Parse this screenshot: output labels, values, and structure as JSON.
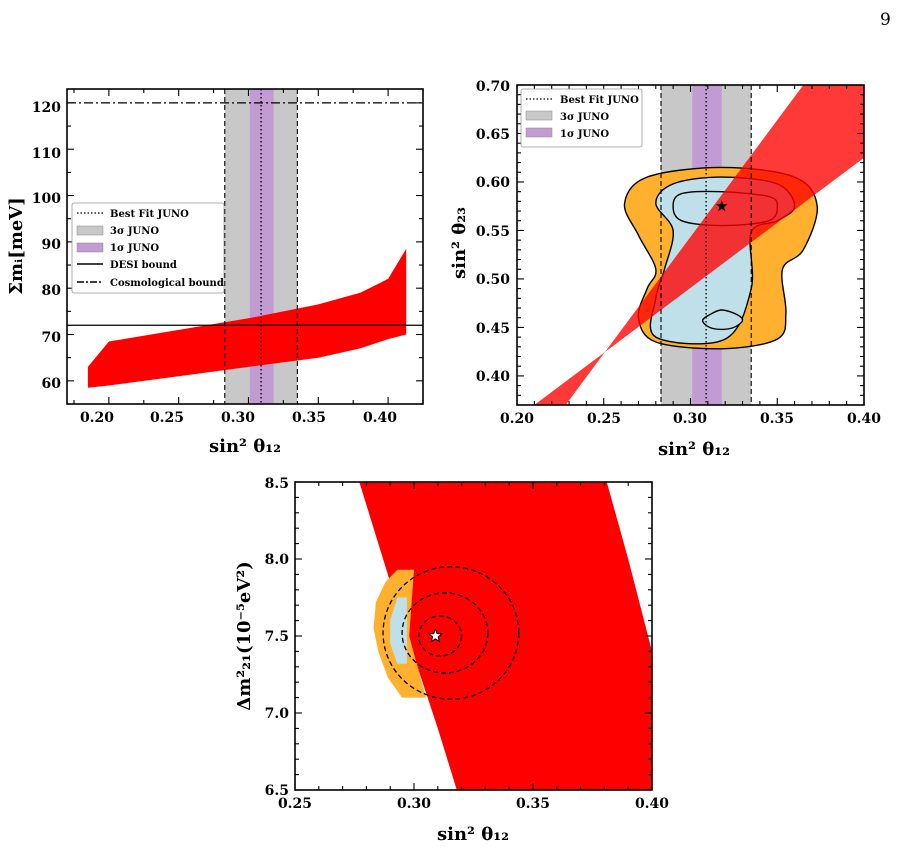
{
  "page": {
    "number": "9"
  },
  "colors": {
    "allowed_region": "#ff0000",
    "sigma3_band": "#c8c8c8",
    "sigma1_band": "#c39bd3",
    "contour_outer_fill": "#ffb02e",
    "contour_inner_fill": "#bfe0e8",
    "line": "#000000"
  },
  "chart_data": [
    {
      "type": "scatter",
      "xlabel": "sin² θ₁₂",
      "ylabel": "Σmᵢ[meV]",
      "xlim": [
        0.17,
        0.425
      ],
      "ylim": [
        55,
        123
      ],
      "xticks": [
        "0.20",
        "0.25",
        "0.30",
        "0.35",
        "0.40"
      ],
      "yticks": [
        "60",
        "70",
        "80",
        "90",
        "100",
        "110",
        "120"
      ],
      "legend_position": "center-left",
      "legend": [
        "Best Fit JUNO",
        "3σ JUNO",
        "1σ JUNO",
        "DESI bound",
        "Cosmological bound"
      ],
      "bands": {
        "sigma3": [
          0.283,
          0.335
        ],
        "sigma1": [
          0.301,
          0.318
        ],
        "best_fit": 0.309
      },
      "hlines": {
        "desi": 72,
        "cosmological": 120
      },
      "region": {
        "x": [
          0.185,
          0.2,
          0.25,
          0.3,
          0.35,
          0.38,
          0.4,
          0.413
        ],
        "lower": [
          58.5,
          59,
          61,
          63,
          65,
          67,
          69,
          70
        ],
        "upper": [
          63,
          68.5,
          71,
          73.5,
          76.5,
          79,
          82,
          88.5
        ]
      }
    },
    {
      "type": "scatter",
      "xlabel": "sin² θ₁₂",
      "ylabel": "sin² θ₂₃",
      "xlim": [
        0.2,
        0.4
      ],
      "ylim": [
        0.37,
        0.7
      ],
      "xticks": [
        "0.20",
        "0.25",
        "0.30",
        "0.35",
        "0.40"
      ],
      "yticks": [
        "0.40",
        "0.45",
        "0.50",
        "0.55",
        "0.60",
        "0.65",
        "0.70"
      ],
      "legend_position": "top-left",
      "legend": [
        "Best Fit JUNO",
        "3σ JUNO",
        "1σ JUNO"
      ],
      "bands": {
        "sigma3": [
          0.283,
          0.335
        ],
        "sigma1": [
          0.301,
          0.318
        ],
        "best_fit": 0.309
      },
      "region": {
        "lower_edge": [
          [
            0.21,
            0.37
          ],
          [
            0.4,
            0.625
          ]
        ],
        "upper_edge": [
          [
            0.2,
            0.37
          ],
          [
            0.228,
            0.37
          ],
          [
            0.365,
            0.7
          ],
          [
            0.4,
            0.7
          ]
        ]
      },
      "best_fit_point": {
        "x": 0.318,
        "y": 0.575
      },
      "contours": {
        "outer_3sigma": [
          [
            0.318,
            0.615
          ],
          [
            0.36,
            0.605
          ],
          [
            0.373,
            0.575
          ],
          [
            0.365,
            0.53
          ],
          [
            0.353,
            0.51
          ],
          [
            0.355,
            0.465
          ],
          [
            0.35,
            0.438
          ],
          [
            0.318,
            0.428
          ],
          [
            0.28,
            0.435
          ],
          [
            0.27,
            0.46
          ],
          [
            0.275,
            0.49
          ],
          [
            0.28,
            0.51
          ],
          [
            0.27,
            0.545
          ],
          [
            0.262,
            0.578
          ],
          [
            0.275,
            0.605
          ]
        ],
        "middle_2sigma": [
          [
            0.318,
            0.605
          ],
          [
            0.35,
            0.598
          ],
          [
            0.36,
            0.575
          ],
          [
            0.35,
            0.56
          ],
          [
            0.335,
            0.548
          ],
          [
            0.335,
            0.49
          ],
          [
            0.32,
            0.438
          ],
          [
            0.28,
            0.44
          ],
          [
            0.28,
            0.48
          ],
          [
            0.285,
            0.51
          ],
          [
            0.29,
            0.55
          ],
          [
            0.28,
            0.578
          ],
          [
            0.29,
            0.598
          ]
        ],
        "inner_1sigma": [
          [
            0.318,
            0.59
          ],
          [
            0.345,
            0.585
          ],
          [
            0.35,
            0.575
          ],
          [
            0.345,
            0.56
          ],
          [
            0.318,
            0.555
          ],
          [
            0.295,
            0.56
          ],
          [
            0.29,
            0.575
          ],
          [
            0.295,
            0.588
          ]
        ],
        "lower_island": [
          [
            0.318,
            0.468
          ],
          [
            0.327,
            0.463
          ],
          [
            0.33,
            0.457
          ],
          [
            0.325,
            0.45
          ],
          [
            0.318,
            0.448
          ],
          [
            0.311,
            0.45
          ],
          [
            0.307,
            0.457
          ],
          [
            0.311,
            0.463
          ]
        ]
      }
    },
    {
      "type": "scatter",
      "xlabel": "sin² θ₁₂",
      "ylabel": "Δm²₂₁(10⁻⁵eV²)",
      "xlim": [
        0.25,
        0.4
      ],
      "ylim": [
        6.5,
        8.5
      ],
      "xticks": [
        "0.25",
        "0.30",
        "0.35",
        "0.40"
      ],
      "yticks": [
        "6.5",
        "7.0",
        "7.5",
        "8.0",
        "8.5"
      ],
      "region": {
        "left_edge": [
          [
            0.277,
            8.5
          ],
          [
            0.295,
            7.6
          ],
          [
            0.31,
            6.9
          ],
          [
            0.318,
            6.5
          ]
        ],
        "right_edge": [
          [
            0.381,
            8.5
          ],
          [
            0.39,
            8.0
          ],
          [
            0.4,
            7.4
          ],
          [
            0.4,
            6.5
          ]
        ]
      },
      "best_fit_point": {
        "x": 0.309,
        "y": 7.5
      },
      "dashed_contours": [
        {
          "cx": 0.311,
          "cy": 7.5,
          "rx": 0.009,
          "ry": 0.13
        },
        {
          "cx": 0.313,
          "cy": 7.52,
          "rx": 0.018,
          "ry": 0.26
        },
        {
          "cx": 0.3155,
          "cy": 7.52,
          "rx": 0.0285,
          "ry": 0.43
        }
      ],
      "highlight": {
        "outer_arc": [
          [
            0.293,
            7.93
          ],
          [
            0.288,
            7.85
          ],
          [
            0.284,
            7.72
          ],
          [
            0.283,
            7.55
          ],
          [
            0.285,
            7.4
          ],
          [
            0.289,
            7.23
          ],
          [
            0.295,
            7.1
          ]
        ],
        "inner_arc": [
          [
            0.293,
            7.75
          ],
          [
            0.29,
            7.6
          ],
          [
            0.29,
            7.45
          ],
          [
            0.293,
            7.32
          ]
        ]
      }
    }
  ]
}
